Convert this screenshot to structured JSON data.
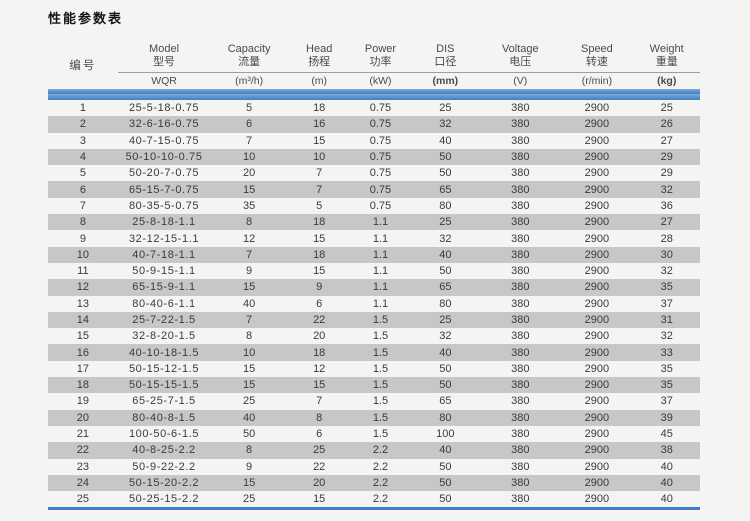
{
  "page": {
    "title": "性能参数表"
  },
  "colors": {
    "accent_blue": "#3f7ec4",
    "row_shade": "#c7c7c7",
    "background": "#f4f5f3"
  },
  "table": {
    "columns": [
      {
        "key": "no",
        "en": "",
        "zh": "编号",
        "unit": ""
      },
      {
        "key": "model",
        "en": "Model",
        "zh": "型号",
        "unit": "WQR"
      },
      {
        "key": "capacity",
        "en": "Capacity",
        "zh": "流量",
        "unit": "(m³/h)"
      },
      {
        "key": "head",
        "en": "Head",
        "zh": "扬程",
        "unit": "(m)"
      },
      {
        "key": "power",
        "en": "Power",
        "zh": "功率",
        "unit": "(kW)"
      },
      {
        "key": "dis",
        "en": "DIS",
        "zh": "口径",
        "unit": "(mm)",
        "unit_bold": true
      },
      {
        "key": "voltage",
        "en": "Voltage",
        "zh": "电压",
        "unit": "(V)"
      },
      {
        "key": "speed",
        "en": "Speed",
        "zh": "转速",
        "unit": "(r/min)"
      },
      {
        "key": "weight",
        "en": "Weight",
        "zh": "重量",
        "unit": "(kg)",
        "unit_bold": true
      }
    ],
    "rows": [
      [
        "1",
        "25-5-18-0.75",
        "5",
        "18",
        "0.75",
        "25",
        "380",
        "2900",
        "25"
      ],
      [
        "2",
        "32-6-16-0.75",
        "6",
        "16",
        "0.75",
        "32",
        "380",
        "2900",
        "26"
      ],
      [
        "3",
        "40-7-15-0.75",
        "7",
        "15",
        "0.75",
        "40",
        "380",
        "2900",
        "27"
      ],
      [
        "4",
        "50-10-10-0.75",
        "10",
        "10",
        "0.75",
        "50",
        "380",
        "2900",
        "29"
      ],
      [
        "5",
        "50-20-7-0.75",
        "20",
        "7",
        "0.75",
        "50",
        "380",
        "2900",
        "29"
      ],
      [
        "6",
        "65-15-7-0.75",
        "15",
        "7",
        "0.75",
        "65",
        "380",
        "2900",
        "32"
      ],
      [
        "7",
        "80-35-5-0.75",
        "35",
        "5",
        "0.75",
        "80",
        "380",
        "2900",
        "36"
      ],
      [
        "8",
        "25-8-18-1.1",
        "8",
        "18",
        "1.1",
        "25",
        "380",
        "2900",
        "27"
      ],
      [
        "9",
        "32-12-15-1.1",
        "12",
        "15",
        "1.1",
        "32",
        "380",
        "2900",
        "28"
      ],
      [
        "10",
        "40-7-18-1.1",
        "7",
        "18",
        "1.1",
        "40",
        "380",
        "2900",
        "30"
      ],
      [
        "11",
        "50-9-15-1.1",
        "9",
        "15",
        "1.1",
        "50",
        "380",
        "2900",
        "32"
      ],
      [
        "12",
        "65-15-9-1.1",
        "15",
        "9",
        "1.1",
        "65",
        "380",
        "2900",
        "35"
      ],
      [
        "13",
        "80-40-6-1.1",
        "40",
        "6",
        "1.1",
        "80",
        "380",
        "2900",
        "37"
      ],
      [
        "14",
        "25-7-22-1.5",
        "7",
        "22",
        "1.5",
        "25",
        "380",
        "2900",
        "31"
      ],
      [
        "15",
        "32-8-20-1.5",
        "8",
        "20",
        "1.5",
        "32",
        "380",
        "2900",
        "32"
      ],
      [
        "16",
        "40-10-18-1.5",
        "10",
        "18",
        "1.5",
        "40",
        "380",
        "2900",
        "33"
      ],
      [
        "17",
        "50-15-12-1.5",
        "15",
        "12",
        "1.5",
        "50",
        "380",
        "2900",
        "35"
      ],
      [
        "18",
        "50-15-15-1.5",
        "15",
        "15",
        "1.5",
        "50",
        "380",
        "2900",
        "35"
      ],
      [
        "19",
        "65-25-7-1.5",
        "25",
        "7",
        "1.5",
        "65",
        "380",
        "2900",
        "37"
      ],
      [
        "20",
        "80-40-8-1.5",
        "40",
        "8",
        "1.5",
        "80",
        "380",
        "2900",
        "39"
      ],
      [
        "21",
        "100-50-6-1.5",
        "50",
        "6",
        "1.5",
        "100",
        "380",
        "2900",
        "45"
      ],
      [
        "22",
        "40-8-25-2.2",
        "8",
        "25",
        "2.2",
        "40",
        "380",
        "2900",
        "38"
      ],
      [
        "23",
        "50-9-22-2.2",
        "9",
        "22",
        "2.2",
        "50",
        "380",
        "2900",
        "40"
      ],
      [
        "24",
        "50-15-20-2.2",
        "15",
        "20",
        "2.2",
        "50",
        "380",
        "2900",
        "40"
      ],
      [
        "25",
        "50-25-15-2.2",
        "25",
        "15",
        "2.2",
        "50",
        "380",
        "2900",
        "40"
      ]
    ]
  }
}
